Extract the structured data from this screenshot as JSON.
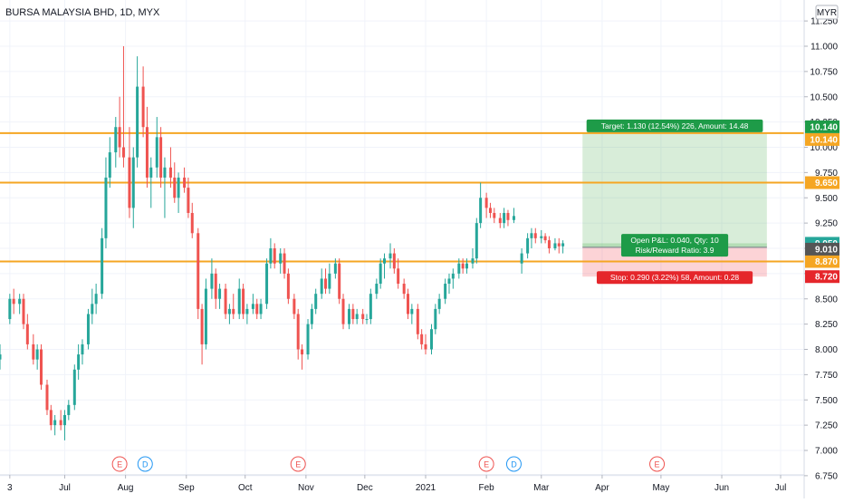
{
  "header": {
    "title": "BURSA MALAYSIA BHD, 1D, MYX",
    "currency_badge": "MYR"
  },
  "chart_data": {
    "type": "candlestick",
    "symbol": "BURSA MALAYSIA BHD",
    "interval": "1D",
    "exchange": "MYX",
    "currency": "MYR",
    "ylim": [
      6.75,
      11.5
    ],
    "y_ticks": [
      "11.250",
      "11.000",
      "10.750",
      "10.500",
      "10.250",
      "10.000",
      "9.750",
      "9.500",
      "9.250",
      "9.000",
      "8.750",
      "8.500",
      "8.250",
      "8.000",
      "7.750",
      "7.500",
      "7.250",
      "7.000",
      "6.750"
    ],
    "x_range": [
      "2020-05-29",
      "2021-07-13"
    ],
    "x_ticks": [
      {
        "label": "3",
        "date": "2020-06-03"
      },
      {
        "label": "Jul",
        "date": "2020-07-01"
      },
      {
        "label": "Aug",
        "date": "2020-08-01"
      },
      {
        "label": "Sep",
        "date": "2020-09-01"
      },
      {
        "label": "Oct",
        "date": "2020-10-01"
      },
      {
        "label": "Nov",
        "date": "2020-11-01"
      },
      {
        "label": "Dec",
        "date": "2020-12-01"
      },
      {
        "label": "2021",
        "date": "2021-01-01"
      },
      {
        "label": "Feb",
        "date": "2021-02-01"
      },
      {
        "label": "Mar",
        "date": "2021-03-01"
      },
      {
        "label": "Apr",
        "date": "2021-04-01"
      },
      {
        "label": "May",
        "date": "2021-05-01"
      },
      {
        "label": "Jun",
        "date": "2021-06-01"
      },
      {
        "label": "Jul",
        "date": "2021-07-01"
      }
    ],
    "horizontal_lines": [
      {
        "price": 10.14,
        "label": "10.140",
        "color": "#f5a623"
      },
      {
        "price": 9.65,
        "label": "9.650",
        "color": "#f5a623"
      },
      {
        "price": 8.87,
        "label": "8.870",
        "color": "#f5a623"
      }
    ],
    "price_badges": [
      {
        "price": 10.14,
        "label": "10.140",
        "color": "#1e9b48"
      },
      {
        "price": 9.05,
        "label": "9.050",
        "color": "#26a69a"
      },
      {
        "price": 9.01,
        "label": "9.010",
        "color": "#555555"
      },
      {
        "price": 8.72,
        "label": "8.720",
        "color": "#e5262b"
      }
    ],
    "long_position": {
      "start": "2021-03-22",
      "end": "2021-06-24",
      "entry": 9.01,
      "target": 10.14,
      "stop": 8.72,
      "current": 9.05,
      "target_label": "Target: 1.130 (12.54%) 226, Amount: 14.48",
      "stop_label": "Stop: 0.290 (3.22%) 58, Amount: 0.28",
      "pnl_label": "Open P&L: 0.040, Qty: 10",
      "rr_label": "Risk/Reward Ratio: 3.9"
    },
    "events": [
      {
        "type": "E",
        "date": "2020-07-29"
      },
      {
        "type": "D",
        "date": "2020-08-11"
      },
      {
        "type": "E",
        "date": "2020-10-28"
      },
      {
        "type": "E",
        "date": "2021-02-01"
      },
      {
        "type": "D",
        "date": "2021-02-15"
      },
      {
        "type": "E",
        "date": "2021-04-29"
      }
    ],
    "candles": [
      {
        "d": "2020-05-29",
        "o": 7.9,
        "h": 8.05,
        "l": 7.8,
        "c": 7.95
      },
      {
        "d": "2020-06-03",
        "o": 8.3,
        "h": 8.55,
        "l": 8.25,
        "c": 8.5
      },
      {
        "d": "2020-06-05",
        "o": 8.5,
        "h": 8.6,
        "l": 8.35,
        "c": 8.45
      },
      {
        "d": "2020-06-08",
        "o": 8.45,
        "h": 8.55,
        "l": 8.35,
        "c": 8.5
      },
      {
        "d": "2020-06-10",
        "o": 8.5,
        "h": 8.55,
        "l": 8.2,
        "c": 8.25
      },
      {
        "d": "2020-06-12",
        "o": 8.25,
        "h": 8.35,
        "l": 8.0,
        "c": 8.05
      },
      {
        "d": "2020-06-15",
        "o": 8.05,
        "h": 8.15,
        "l": 7.85,
        "c": 7.9
      },
      {
        "d": "2020-06-17",
        "o": 7.9,
        "h": 8.05,
        "l": 7.8,
        "c": 8.0
      },
      {
        "d": "2020-06-19",
        "o": 8.0,
        "h": 8.05,
        "l": 7.6,
        "c": 7.65
      },
      {
        "d": "2020-06-22",
        "o": 7.65,
        "h": 7.7,
        "l": 7.35,
        "c": 7.4
      },
      {
        "d": "2020-06-24",
        "o": 7.4,
        "h": 7.45,
        "l": 7.2,
        "c": 7.25
      },
      {
        "d": "2020-06-26",
        "o": 7.25,
        "h": 7.35,
        "l": 7.15,
        "c": 7.3
      },
      {
        "d": "2020-06-29",
        "o": 7.3,
        "h": 7.4,
        "l": 7.2,
        "c": 7.25
      },
      {
        "d": "2020-07-01",
        "o": 7.25,
        "h": 7.4,
        "l": 7.1,
        "c": 7.35
      },
      {
        "d": "2020-07-03",
        "o": 7.35,
        "h": 7.5,
        "l": 7.3,
        "c": 7.45
      },
      {
        "d": "2020-07-06",
        "o": 7.45,
        "h": 7.85,
        "l": 7.4,
        "c": 7.8
      },
      {
        "d": "2020-07-08",
        "o": 7.8,
        "h": 8.05,
        "l": 7.7,
        "c": 7.95
      },
      {
        "d": "2020-07-10",
        "o": 7.95,
        "h": 8.1,
        "l": 7.85,
        "c": 8.05
      },
      {
        "d": "2020-07-13",
        "o": 8.05,
        "h": 8.4,
        "l": 8.0,
        "c": 8.35
      },
      {
        "d": "2020-07-15",
        "o": 8.35,
        "h": 8.6,
        "l": 8.25,
        "c": 8.45
      },
      {
        "d": "2020-07-17",
        "o": 8.45,
        "h": 8.65,
        "l": 8.35,
        "c": 8.55
      },
      {
        "d": "2020-07-20",
        "o": 8.55,
        "h": 9.2,
        "l": 8.5,
        "c": 9.1
      },
      {
        "d": "2020-07-22",
        "o": 9.1,
        "h": 9.9,
        "l": 9.0,
        "c": 9.7
      },
      {
        "d": "2020-07-24",
        "o": 9.7,
        "h": 10.1,
        "l": 9.6,
        "c": 9.95
      },
      {
        "d": "2020-07-27",
        "o": 9.95,
        "h": 10.3,
        "l": 9.8,
        "c": 10.2
      },
      {
        "d": "2020-07-29",
        "o": 10.2,
        "h": 10.5,
        "l": 9.9,
        "c": 10.0
      },
      {
        "d": "2020-07-31",
        "o": 10.0,
        "h": 11.0,
        "l": 9.8,
        "c": 9.9
      },
      {
        "d": "2020-08-03",
        "o": 9.9,
        "h": 10.2,
        "l": 9.3,
        "c": 9.4
      },
      {
        "d": "2020-08-05",
        "o": 9.4,
        "h": 10.0,
        "l": 9.2,
        "c": 9.9
      },
      {
        "d": "2020-08-07",
        "o": 9.9,
        "h": 10.9,
        "l": 9.8,
        "c": 10.6
      },
      {
        "d": "2020-08-10",
        "o": 10.6,
        "h": 10.8,
        "l": 10.1,
        "c": 10.2
      },
      {
        "d": "2020-08-12",
        "o": 10.2,
        "h": 10.4,
        "l": 9.6,
        "c": 9.7
      },
      {
        "d": "2020-08-14",
        "o": 9.7,
        "h": 9.9,
        "l": 9.4,
        "c": 9.8
      },
      {
        "d": "2020-08-17",
        "o": 9.8,
        "h": 10.3,
        "l": 9.7,
        "c": 10.1
      },
      {
        "d": "2020-08-19",
        "o": 10.1,
        "h": 10.2,
        "l": 9.6,
        "c": 9.7
      },
      {
        "d": "2020-08-21",
        "o": 9.7,
        "h": 9.9,
        "l": 9.3,
        "c": 9.8
      },
      {
        "d": "2020-08-24",
        "o": 9.8,
        "h": 10.0,
        "l": 9.6,
        "c": 9.7
      },
      {
        "d": "2020-08-26",
        "o": 9.7,
        "h": 9.85,
        "l": 9.45,
        "c": 9.5
      },
      {
        "d": "2020-08-28",
        "o": 9.5,
        "h": 9.75,
        "l": 9.35,
        "c": 9.7
      },
      {
        "d": "2020-08-31",
        "o": 9.7,
        "h": 9.8,
        "l": 9.55,
        "c": 9.6
      },
      {
        "d": "2020-09-02",
        "o": 9.6,
        "h": 9.7,
        "l": 9.3,
        "c": 9.35
      },
      {
        "d": "2020-09-04",
        "o": 9.35,
        "h": 9.45,
        "l": 9.1,
        "c": 9.15
      },
      {
        "d": "2020-09-07",
        "o": 9.15,
        "h": 9.2,
        "l": 8.3,
        "c": 8.4
      },
      {
        "d": "2020-09-09",
        "o": 8.4,
        "h": 8.45,
        "l": 7.85,
        "c": 8.05
      },
      {
        "d": "2020-09-11",
        "o": 8.05,
        "h": 8.7,
        "l": 8.0,
        "c": 8.6
      },
      {
        "d": "2020-09-14",
        "o": 8.6,
        "h": 8.9,
        "l": 8.5,
        "c": 8.75
      },
      {
        "d": "2020-09-16",
        "o": 8.75,
        "h": 8.8,
        "l": 8.4,
        "c": 8.5
      },
      {
        "d": "2020-09-18",
        "o": 8.5,
        "h": 8.65,
        "l": 8.4,
        "c": 8.6
      },
      {
        "d": "2020-09-21",
        "o": 8.6,
        "h": 8.65,
        "l": 8.3,
        "c": 8.35
      },
      {
        "d": "2020-09-23",
        "o": 8.35,
        "h": 8.45,
        "l": 8.25,
        "c": 8.4
      },
      {
        "d": "2020-09-25",
        "o": 8.4,
        "h": 8.55,
        "l": 8.3,
        "c": 8.35
      },
      {
        "d": "2020-09-28",
        "o": 8.35,
        "h": 8.7,
        "l": 8.3,
        "c": 8.6
      },
      {
        "d": "2020-09-30",
        "o": 8.6,
        "h": 8.65,
        "l": 8.3,
        "c": 8.35
      },
      {
        "d": "2020-10-02",
        "o": 8.35,
        "h": 8.45,
        "l": 8.25,
        "c": 8.4
      },
      {
        "d": "2020-10-05",
        "o": 8.4,
        "h": 8.55,
        "l": 8.35,
        "c": 8.45
      },
      {
        "d": "2020-10-07",
        "o": 8.45,
        "h": 8.5,
        "l": 8.3,
        "c": 8.35
      },
      {
        "d": "2020-10-09",
        "o": 8.35,
        "h": 8.5,
        "l": 8.3,
        "c": 8.45
      },
      {
        "d": "2020-10-12",
        "o": 8.45,
        "h": 8.9,
        "l": 8.4,
        "c": 8.85
      },
      {
        "d": "2020-10-14",
        "o": 8.85,
        "h": 9.1,
        "l": 8.8,
        "c": 9.0
      },
      {
        "d": "2020-10-16",
        "o": 9.0,
        "h": 9.05,
        "l": 8.8,
        "c": 8.85
      },
      {
        "d": "2020-10-19",
        "o": 8.85,
        "h": 9.0,
        "l": 8.75,
        "c": 8.95
      },
      {
        "d": "2020-10-21",
        "o": 8.95,
        "h": 9.0,
        "l": 8.7,
        "c": 8.75
      },
      {
        "d": "2020-10-23",
        "o": 8.75,
        "h": 8.8,
        "l": 8.45,
        "c": 8.5
      },
      {
        "d": "2020-10-26",
        "o": 8.5,
        "h": 8.55,
        "l": 8.3,
        "c": 8.35
      },
      {
        "d": "2020-10-28",
        "o": 8.35,
        "h": 8.4,
        "l": 7.9,
        "c": 8.0
      },
      {
        "d": "2020-10-30",
        "o": 8.0,
        "h": 8.05,
        "l": 7.8,
        "c": 7.95
      },
      {
        "d": "2020-11-02",
        "o": 7.95,
        "h": 8.3,
        "l": 7.9,
        "c": 8.25
      },
      {
        "d": "2020-11-04",
        "o": 8.25,
        "h": 8.45,
        "l": 8.2,
        "c": 8.4
      },
      {
        "d": "2020-11-06",
        "o": 8.4,
        "h": 8.6,
        "l": 8.35,
        "c": 8.55
      },
      {
        "d": "2020-11-09",
        "o": 8.55,
        "h": 8.8,
        "l": 8.5,
        "c": 8.7
      },
      {
        "d": "2020-11-11",
        "o": 8.7,
        "h": 8.8,
        "l": 8.55,
        "c": 8.6
      },
      {
        "d": "2020-11-13",
        "o": 8.6,
        "h": 8.85,
        "l": 8.55,
        "c": 8.75
      },
      {
        "d": "2020-11-16",
        "o": 8.75,
        "h": 8.9,
        "l": 8.7,
        "c": 8.85
      },
      {
        "d": "2020-11-18",
        "o": 8.85,
        "h": 8.9,
        "l": 8.45,
        "c": 8.5
      },
      {
        "d": "2020-11-20",
        "o": 8.5,
        "h": 8.55,
        "l": 8.2,
        "c": 8.25
      },
      {
        "d": "2020-11-23",
        "o": 8.25,
        "h": 8.45,
        "l": 8.2,
        "c": 8.4
      },
      {
        "d": "2020-11-25",
        "o": 8.4,
        "h": 8.45,
        "l": 8.25,
        "c": 8.3
      },
      {
        "d": "2020-11-27",
        "o": 8.3,
        "h": 8.4,
        "l": 8.25,
        "c": 8.35
      },
      {
        "d": "2020-11-30",
        "o": 8.35,
        "h": 8.4,
        "l": 8.25,
        "c": 8.3
      },
      {
        "d": "2020-12-02",
        "o": 8.3,
        "h": 8.35,
        "l": 8.25,
        "c": 8.3
      },
      {
        "d": "2020-12-04",
        "o": 8.3,
        "h": 8.6,
        "l": 8.25,
        "c": 8.55
      },
      {
        "d": "2020-12-07",
        "o": 8.55,
        "h": 8.7,
        "l": 8.5,
        "c": 8.65
      },
      {
        "d": "2020-12-09",
        "o": 8.65,
        "h": 8.9,
        "l": 8.6,
        "c": 8.85
      },
      {
        "d": "2020-12-11",
        "o": 8.85,
        "h": 8.95,
        "l": 8.7,
        "c": 8.9
      },
      {
        "d": "2020-12-14",
        "o": 8.9,
        "h": 9.05,
        "l": 8.8,
        "c": 8.95
      },
      {
        "d": "2020-12-16",
        "o": 8.95,
        "h": 9.0,
        "l": 8.75,
        "c": 8.8
      },
      {
        "d": "2020-12-18",
        "o": 8.8,
        "h": 8.9,
        "l": 8.6,
        "c": 8.65
      },
      {
        "d": "2020-12-21",
        "o": 8.65,
        "h": 8.7,
        "l": 8.5,
        "c": 8.55
      },
      {
        "d": "2020-12-23",
        "o": 8.55,
        "h": 8.6,
        "l": 8.3,
        "c": 8.35
      },
      {
        "d": "2020-12-25",
        "o": 8.35,
        "h": 8.45,
        "l": 8.25,
        "c": 8.4
      },
      {
        "d": "2020-12-28",
        "o": 8.4,
        "h": 8.45,
        "l": 8.1,
        "c": 8.15
      },
      {
        "d": "2020-12-30",
        "o": 8.15,
        "h": 8.2,
        "l": 8.0,
        "c": 8.05
      },
      {
        "d": "2021-01-01",
        "o": 8.05,
        "h": 8.15,
        "l": 7.95,
        "c": 8.0
      },
      {
        "d": "2021-01-04",
        "o": 8.0,
        "h": 8.25,
        "l": 7.95,
        "c": 8.2
      },
      {
        "d": "2021-01-06",
        "o": 8.2,
        "h": 8.45,
        "l": 8.15,
        "c": 8.4
      },
      {
        "d": "2021-01-08",
        "o": 8.4,
        "h": 8.55,
        "l": 8.35,
        "c": 8.5
      },
      {
        "d": "2021-01-11",
        "o": 8.5,
        "h": 8.7,
        "l": 8.45,
        "c": 8.65
      },
      {
        "d": "2021-01-13",
        "o": 8.65,
        "h": 8.75,
        "l": 8.55,
        "c": 8.7
      },
      {
        "d": "2021-01-15",
        "o": 8.7,
        "h": 8.8,
        "l": 8.6,
        "c": 8.75
      },
      {
        "d": "2021-01-18",
        "o": 8.75,
        "h": 8.9,
        "l": 8.7,
        "c": 8.85
      },
      {
        "d": "2021-01-20",
        "o": 8.85,
        "h": 8.9,
        "l": 8.75,
        "c": 8.8
      },
      {
        "d": "2021-01-22",
        "o": 8.8,
        "h": 8.9,
        "l": 8.75,
        "c": 8.85
      },
      {
        "d": "2021-01-25",
        "o": 8.85,
        "h": 9.0,
        "l": 8.8,
        "c": 8.9
      },
      {
        "d": "2021-01-27",
        "o": 8.9,
        "h": 9.3,
        "l": 8.85,
        "c": 9.25
      },
      {
        "d": "2021-01-29",
        "o": 9.25,
        "h": 9.65,
        "l": 9.2,
        "c": 9.5
      },
      {
        "d": "2021-02-01",
        "o": 9.5,
        "h": 9.55,
        "l": 9.3,
        "c": 9.4
      },
      {
        "d": "2021-02-03",
        "o": 9.4,
        "h": 9.45,
        "l": 9.3,
        "c": 9.35
      },
      {
        "d": "2021-02-05",
        "o": 9.35,
        "h": 9.4,
        "l": 9.25,
        "c": 9.3
      },
      {
        "d": "2021-02-08",
        "o": 9.3,
        "h": 9.35,
        "l": 9.2,
        "c": 9.25
      },
      {
        "d": "2021-02-10",
        "o": 9.25,
        "h": 9.4,
        "l": 9.2,
        "c": 9.35
      },
      {
        "d": "2021-02-12",
        "o": 9.35,
        "h": 9.38,
        "l": 9.22,
        "c": 9.28
      },
      {
        "d": "2021-02-15",
        "o": 9.28,
        "h": 9.4,
        "l": 9.25,
        "c": 9.32
      },
      {
        "d": "2021-02-19",
        "o": 8.85,
        "h": 9.0,
        "l": 8.75,
        "c": 8.95
      },
      {
        "d": "2021-02-22",
        "o": 8.95,
        "h": 9.15,
        "l": 8.9,
        "c": 9.1
      },
      {
        "d": "2021-02-24",
        "o": 9.1,
        "h": 9.2,
        "l": 9.0,
        "c": 9.15
      },
      {
        "d": "2021-02-26",
        "o": 9.15,
        "h": 9.2,
        "l": 9.05,
        "c": 9.1
      },
      {
        "d": "2021-03-01",
        "o": 9.1,
        "h": 9.18,
        "l": 9.05,
        "c": 9.12
      },
      {
        "d": "2021-03-03",
        "o": 9.12,
        "h": 9.15,
        "l": 9.05,
        "c": 9.08
      },
      {
        "d": "2021-03-05",
        "o": 9.08,
        "h": 9.12,
        "l": 8.95,
        "c": 9.0
      },
      {
        "d": "2021-03-08",
        "o": 9.0,
        "h": 9.1,
        "l": 8.98,
        "c": 9.05
      },
      {
        "d": "2021-03-10",
        "o": 9.05,
        "h": 9.1,
        "l": 8.95,
        "c": 9.02
      },
      {
        "d": "2021-03-12",
        "o": 9.02,
        "h": 9.08,
        "l": 8.95,
        "c": 9.05
      }
    ]
  }
}
